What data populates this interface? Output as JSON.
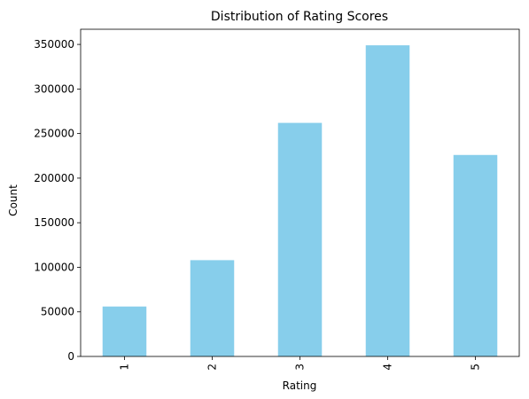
{
  "chart_data": {
    "type": "bar",
    "title": "Distribution of Rating Scores",
    "xlabel": "Rating",
    "ylabel": "Count",
    "categories": [
      "1",
      "2",
      "3",
      "4",
      "5"
    ],
    "values": [
      56000,
      108000,
      262000,
      349000,
      226000
    ],
    "ylim": [
      0,
      367000
    ],
    "yticks": [
      0,
      50000,
      100000,
      150000,
      200000,
      250000,
      300000,
      350000
    ],
    "ytick_labels": [
      "0",
      "50000",
      "100000",
      "150000",
      "200000",
      "250000",
      "300000",
      "350000"
    ],
    "bar_color": "#87ceeb",
    "grid": false,
    "legend": "none"
  }
}
